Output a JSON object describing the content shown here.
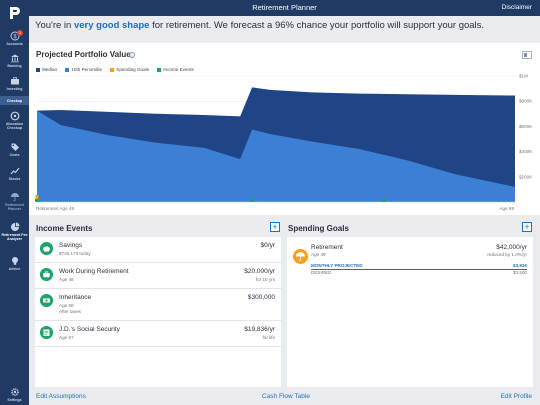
{
  "app": {
    "title": "Retirement Planner",
    "disclaimer": "Disclaimer"
  },
  "sidebar": {
    "items": [
      {
        "label": "Accounts",
        "icon": "dollar-icon",
        "badge": "1"
      },
      {
        "label": "Banking",
        "icon": "bank-icon"
      },
      {
        "label": "Investing",
        "icon": "briefcase-icon"
      },
      {
        "label": "Checkup",
        "icon": "checkup-icon",
        "active": true
      },
      {
        "label": "Allocation Checkup",
        "icon": "allocation-icon"
      },
      {
        "label": "Costs",
        "icon": "tag-icon"
      },
      {
        "label": "Stocks",
        "icon": "stocks-icon"
      },
      {
        "label": "Retirement Planner",
        "icon": "umbrella-icon"
      },
      {
        "label": "Retirement Fee Analyzer",
        "icon": "pie-icon"
      },
      {
        "label": "Advice",
        "icon": "lightbulb-icon"
      },
      {
        "label": "Settings",
        "icon": "gear-icon"
      }
    ]
  },
  "headline": {
    "prefix": "You're in ",
    "highlight": "very good shape",
    "suffix": " for retirement. We forecast a 96% chance your portfolio will support your goals."
  },
  "chart_panel": {
    "title": "Projected Portfolio Value",
    "info_icon": "i"
  },
  "chart_data": {
    "type": "area",
    "title": "Projected Portfolio Value",
    "x_start_label": "Retirement Age 49",
    "x_end_label": "Age 89",
    "xlim": [
      49,
      89
    ],
    "ylim": [
      0,
      1000000
    ],
    "y_ticks": [
      "$1M",
      "$800K",
      "$600K",
      "$400K",
      "$200K"
    ],
    "y_tick_values": [
      1000000,
      800000,
      600000,
      400000,
      200000
    ],
    "legend_position": "top-left",
    "grid": true,
    "series": [
      {
        "name": "Median",
        "color": "#1f4586",
        "x": [
          49,
          51,
          55,
          59,
          63,
          66,
          67,
          68.5,
          72,
          76,
          80,
          84,
          89
        ],
        "y": [
          725000,
          730000,
          715000,
          700000,
          690000,
          680000,
          910000,
          890000,
          870000,
          860000,
          855000,
          850000,
          845000
        ]
      },
      {
        "name": "10th Percentile",
        "color": "#3c7fd4",
        "x": [
          49,
          51,
          55,
          59,
          63,
          66,
          67,
          68.5,
          72,
          76,
          80,
          84,
          89
        ],
        "y": [
          725000,
          610000,
          530000,
          470000,
          430000,
          340000,
          575000,
          540000,
          480000,
          420000,
          330000,
          220000,
          120000
        ]
      }
    ],
    "markers": [
      {
        "name": "Spending Goals",
        "color": "#f6a21d",
        "x": [
          49
        ]
      },
      {
        "name": "Income Events",
        "color": "#1ea36c",
        "x": [
          49,
          67,
          78
        ]
      }
    ]
  },
  "income_events": {
    "title": "Income Events",
    "add_label": "+",
    "items": [
      {
        "name": "Savings",
        "sub": [
          "$736,170 today"
        ],
        "amount": "$0/yr",
        "amount_sub": "",
        "icon": "piggy-bank-icon"
      },
      {
        "name": "Work During Retirement",
        "sub": [
          "Age 49"
        ],
        "amount": "$20,000/yr",
        "amount_sub": "for 10 yrs",
        "icon": "briefcase-icon"
      },
      {
        "name": "Inheritance",
        "sub": [
          "Age 60",
          "After taxes"
        ],
        "amount": "$300,000",
        "amount_sub": "",
        "icon": "money-icon"
      },
      {
        "name": "J.D.'s Social Security",
        "sub": [
          "Age 67"
        ],
        "amount": "$19,836/yr",
        "amount_sub": "for life",
        "icon": "card-icon"
      }
    ]
  },
  "spending_goals": {
    "title": "Spending Goals",
    "add_label": "+",
    "item": {
      "name": "Retirement",
      "age": "Age 49",
      "amount": "$42,000/yr",
      "reduction": "reduced by 1.0%/yr",
      "projected_label": "MONTHLY PROJECTED",
      "projected_value": "$3,916",
      "desired_label": "DESIRED",
      "desired_value": "$3,500",
      "icon": "umbrella-icon"
    }
  },
  "footer": {
    "edit_assumptions": "Edit Assumptions",
    "cash_flow_table": "Cash Flow Table",
    "edit_profile": "Edit Profile"
  }
}
